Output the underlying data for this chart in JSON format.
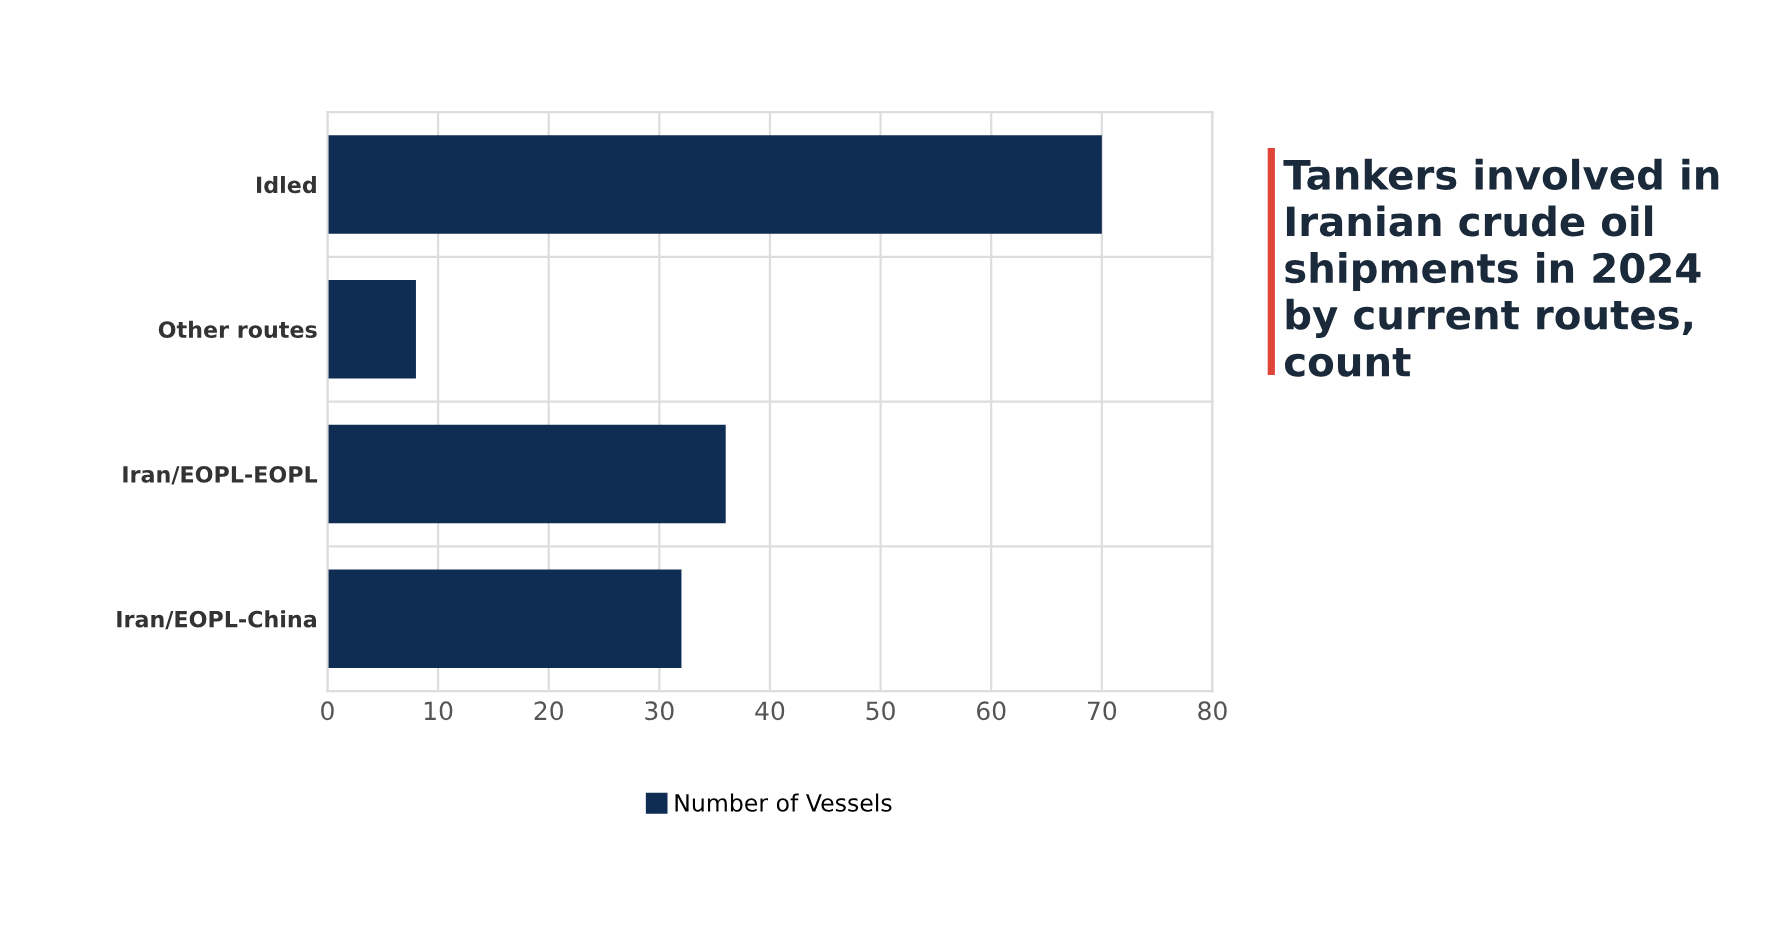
{
  "chart_data": {
    "type": "bar",
    "orientation": "horizontal",
    "title": "Tankers involved in Iranian crude oil shipments in 2024 by current routes, count",
    "categories": [
      "Idled",
      "Other routes",
      "Iran/EOPL-EOPL",
      "Iran/EOPL-China"
    ],
    "series": [
      {
        "name": "Number of Vessels",
        "color": "#0f2d52",
        "values": [
          70,
          8,
          36,
          32
        ]
      }
    ],
    "xlim": [
      0,
      80
    ],
    "xticks": [
      0,
      10,
      20,
      30,
      40,
      50,
      60,
      70,
      80
    ],
    "grid": true,
    "legend": "bottom"
  }
}
